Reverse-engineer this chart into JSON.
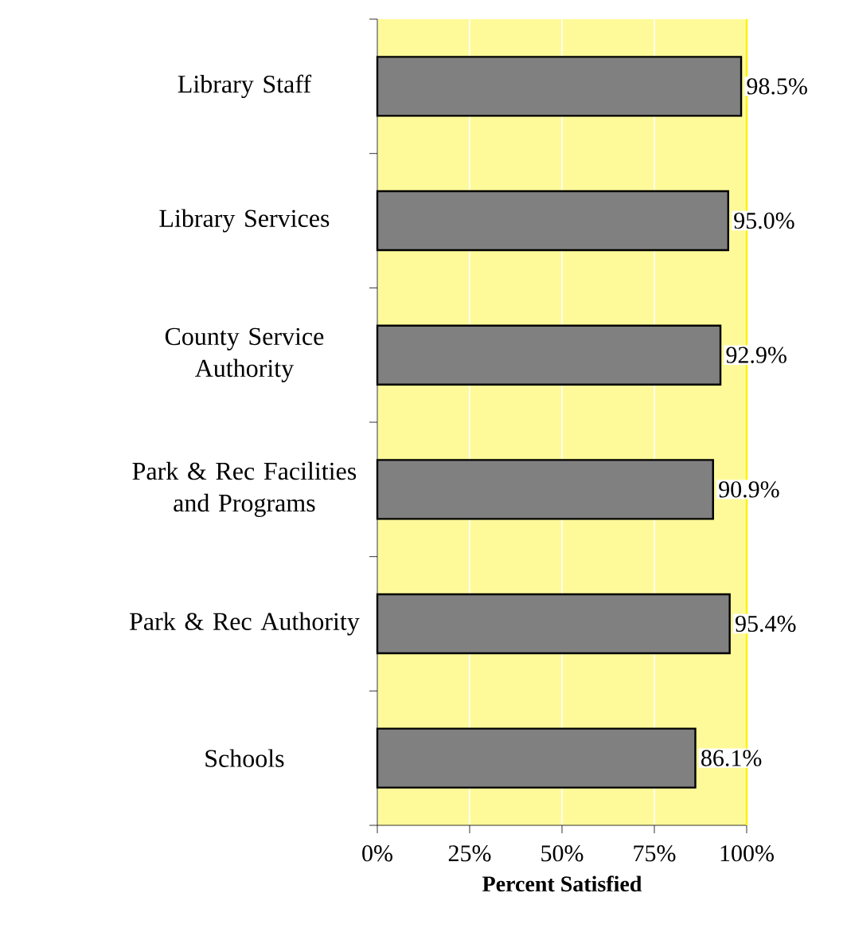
{
  "chart_data": {
    "type": "bar",
    "orientation": "horizontal",
    "xlabel": "Percent Satisfied",
    "categories": [
      "Library  Staff",
      "Library Services",
      "County Service Authority",
      "Park & Rec Facilities and Programs",
      "Park & Rec Authority",
      "Schools"
    ],
    "values": [
      98.5,
      95.0,
      92.9,
      90.9,
      95.4,
      86.1
    ],
    "value_labels": [
      "98.5%",
      "95.0%",
      "92.9%",
      "90.9%",
      "95.4%",
      "86.1%"
    ],
    "color": "#808080",
    "xlim": [
      0,
      100
    ],
    "xticks": [
      {
        "value": 0,
        "label": "0%"
      },
      {
        "value": 25,
        "label": "25%"
      },
      {
        "value": 50,
        "label": "50%"
      },
      {
        "value": 75,
        "label": "75%"
      },
      {
        "value": 100,
        "label": "100%"
      }
    ],
    "grid": "x"
  }
}
